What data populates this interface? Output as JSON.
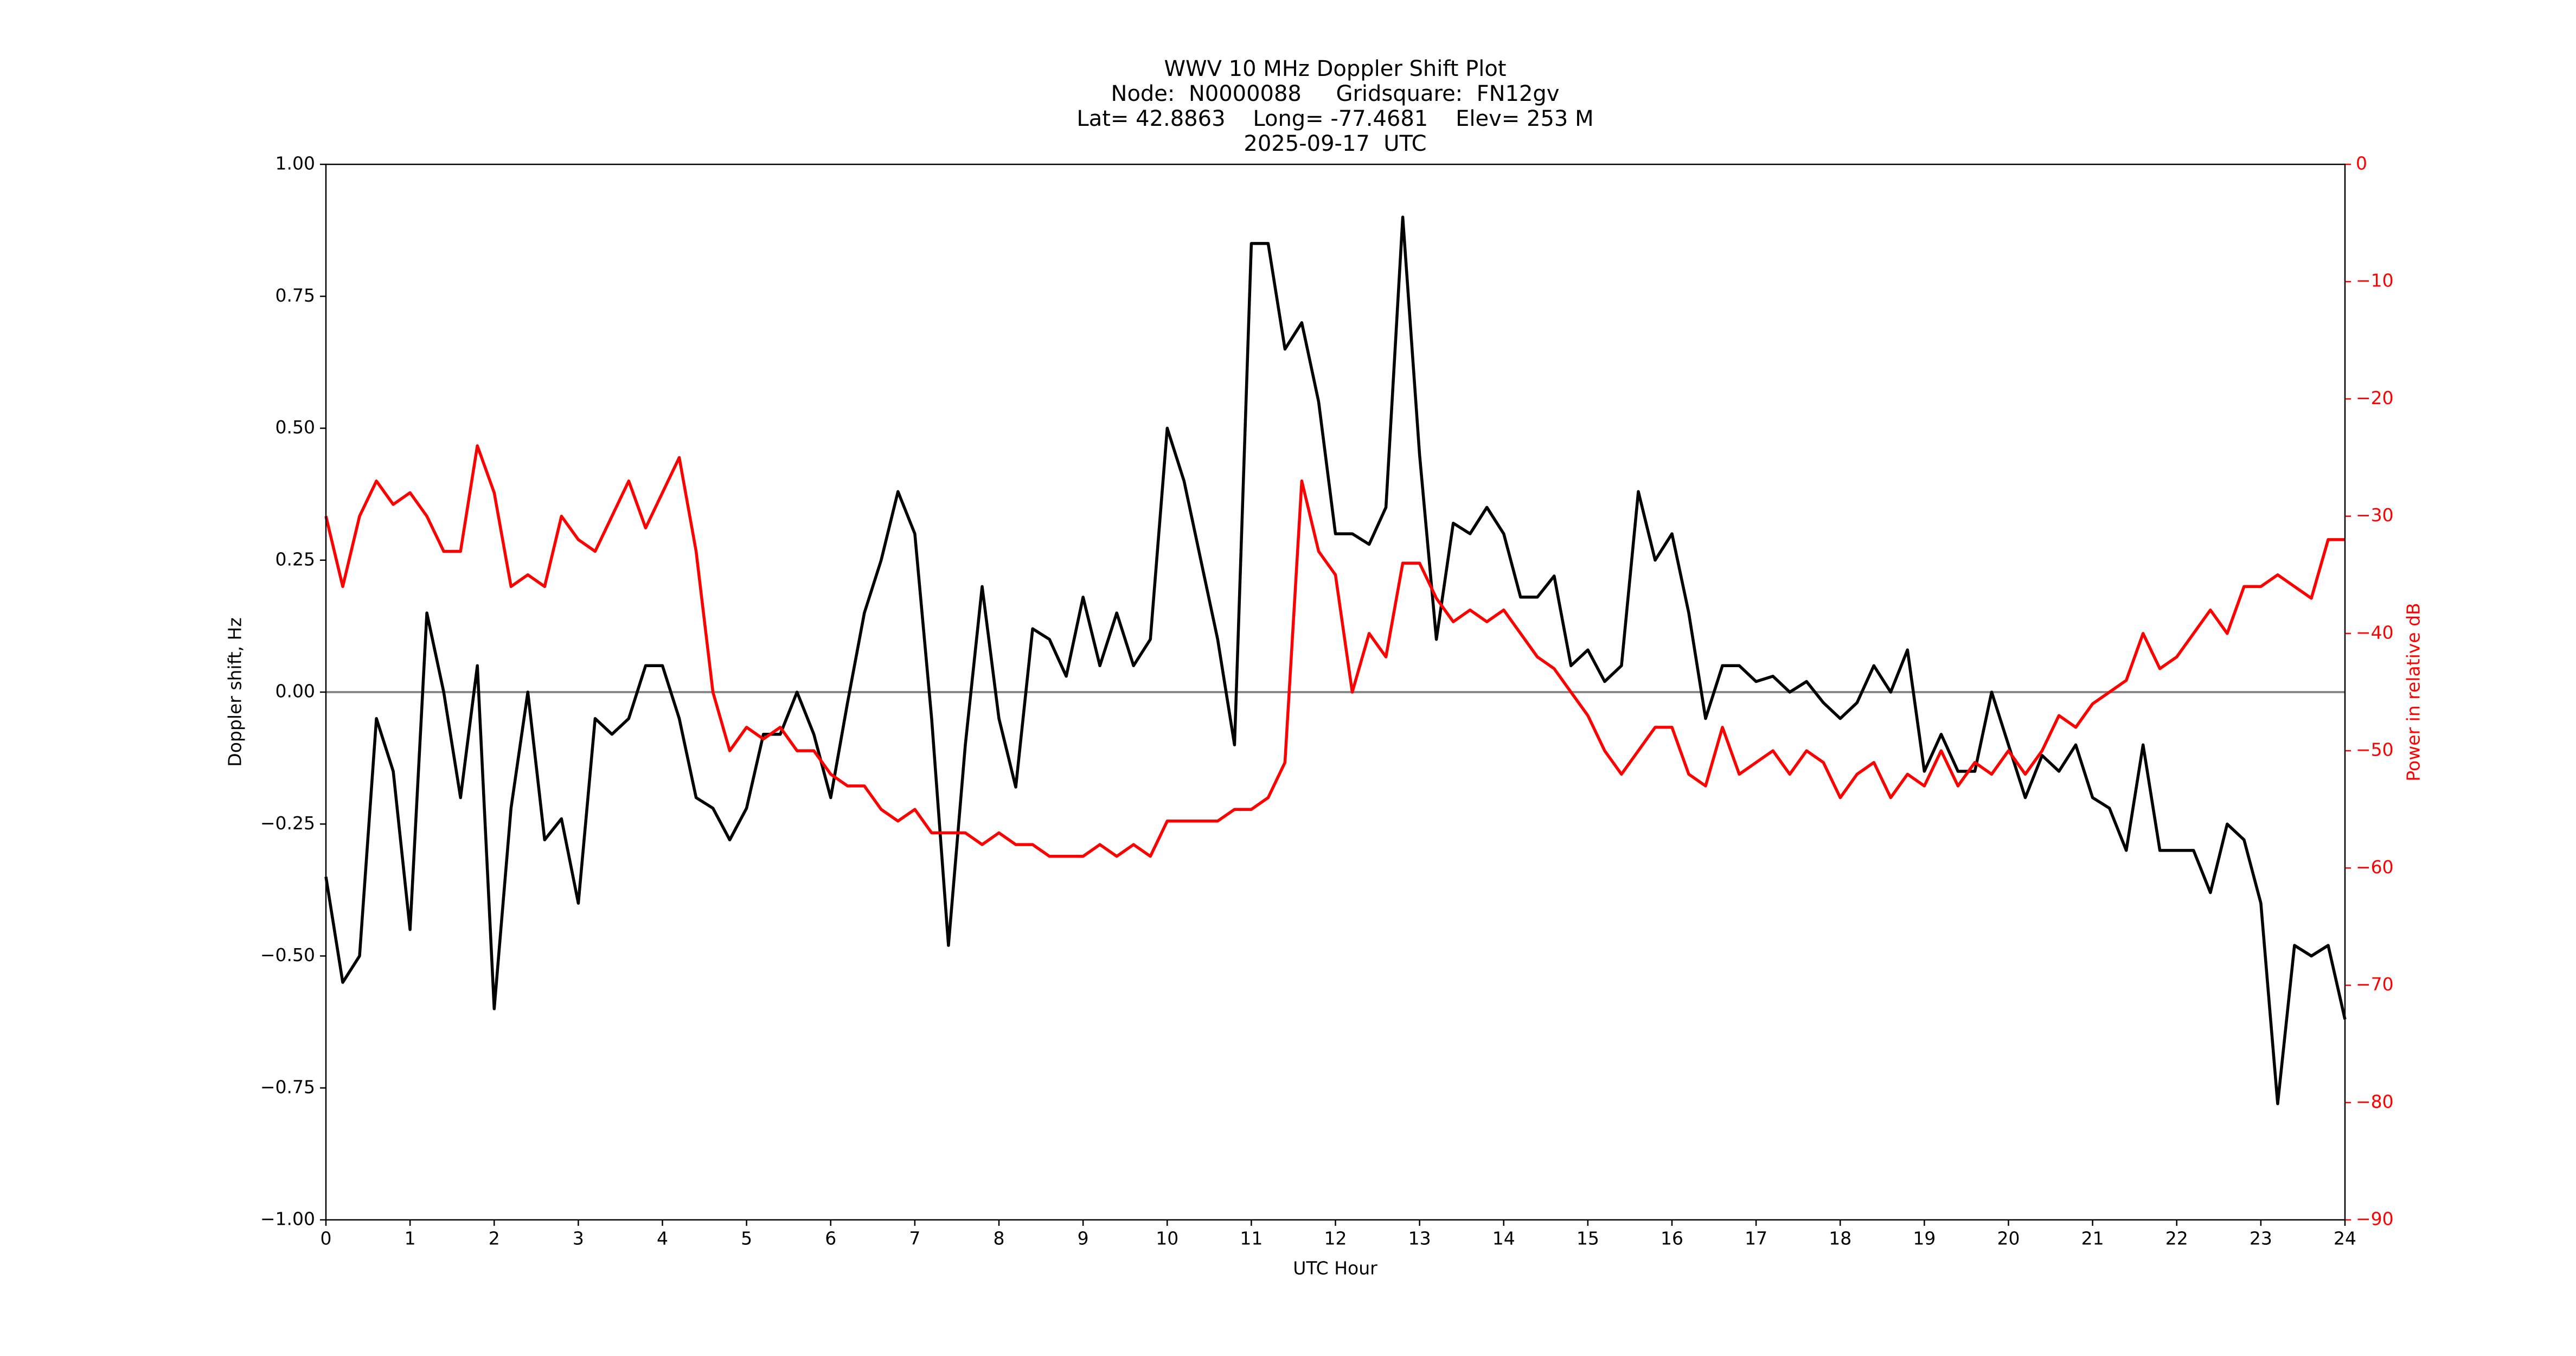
{
  "chart_data": {
    "type": "line",
    "title": "WWV 10 MHz Doppler Shift Plot",
    "subtitle": [
      "Node:  N0000088     Gridsquare:  FN12gv",
      "Lat= 42.8863    Long= -77.4681    Elev= 253 M",
      "2025-09-17  UTC"
    ],
    "xlabel": "UTC Hour",
    "ylabel": "Doppler shift, Hz",
    "y2label": "Power in relative dB",
    "xlim": [
      0,
      24
    ],
    "xticks": [
      0,
      1,
      2,
      3,
      4,
      5,
      6,
      7,
      8,
      9,
      10,
      11,
      12,
      13,
      14,
      15,
      16,
      17,
      18,
      19,
      20,
      21,
      22,
      23,
      24
    ],
    "ylim": [
      -1,
      1
    ],
    "yticks": [
      {
        "value": -1,
        "label": "−1.00"
      },
      {
        "value": -0.75,
        "label": "−0.75"
      },
      {
        "value": -0.5,
        "label": "−0.50"
      },
      {
        "value": -0.25,
        "label": "−0.25"
      },
      {
        "value": 0,
        "label": "0.00"
      },
      {
        "value": 0.25,
        "label": "0.25"
      },
      {
        "value": 0.5,
        "label": "0.50"
      },
      {
        "value": 0.75,
        "label": "0.75"
      },
      {
        "value": 1,
        "label": "1.00"
      }
    ],
    "y2lim": [
      -90,
      0
    ],
    "y2ticks": [
      {
        "value": -90,
        "label": "−90"
      },
      {
        "value": -80,
        "label": "−80"
      },
      {
        "value": -70,
        "label": "−70"
      },
      {
        "value": -60,
        "label": "−60"
      },
      {
        "value": -50,
        "label": "−50"
      },
      {
        "value": -40,
        "label": "−40"
      },
      {
        "value": -30,
        "label": "−30"
      },
      {
        "value": -20,
        "label": "−20"
      },
      {
        "value": -10,
        "label": "−10"
      },
      0
    ],
    "x": [
      0,
      0.2,
      0.4,
      0.6,
      0.8,
      1,
      1.2,
      1.4,
      1.6,
      1.8,
      2,
      2.2,
      2.4,
      2.6,
      2.8,
      3,
      3.2,
      3.4,
      3.6,
      3.8,
      4,
      4.2,
      4.4,
      4.6,
      4.8,
      5,
      5.2,
      5.4,
      5.6,
      5.8,
      6,
      6.2,
      6.4,
      6.6,
      6.8,
      7,
      7.2,
      7.4,
      7.6,
      7.8,
      8,
      8.2,
      8.4,
      8.6,
      8.8,
      9,
      9.2,
      9.4,
      9.6,
      9.8,
      10,
      10.2,
      10.4,
      10.6,
      10.8,
      11,
      11.2,
      11.4,
      11.6,
      11.8,
      12,
      12.2,
      12.4,
      12.6,
      12.8,
      13,
      13.2,
      13.4,
      13.6,
      13.8,
      14,
      14.2,
      14.4,
      14.6,
      14.8,
      15,
      15.2,
      15.4,
      15.6,
      15.8,
      16,
      16.2,
      16.4,
      16.6,
      16.8,
      17,
      17.2,
      17.4,
      17.6,
      17.8,
      18,
      18.2,
      18.4,
      18.6,
      18.8,
      19,
      19.2,
      19.4,
      19.6,
      19.8,
      20,
      20.2,
      20.4,
      20.6,
      20.8,
      21,
      21.2,
      21.4,
      21.6,
      21.8,
      22,
      22.2,
      22.4,
      22.6,
      22.8,
      23,
      23.2,
      23.4,
      23.6,
      23.8,
      24
    ],
    "series": [
      {
        "color": "#000000",
        "values": [
          -0.35,
          -0.55,
          -0.5,
          -0.05,
          -0.15,
          -0.45,
          0.15,
          0.0,
          -0.2,
          0.05,
          -0.6,
          -0.22,
          0.0,
          -0.28,
          -0.24,
          -0.4,
          -0.05,
          -0.08,
          -0.05,
          0.05,
          0.05,
          -0.05,
          -0.2,
          -0.22,
          -0.28,
          -0.22,
          -0.08,
          -0.08,
          0.0,
          -0.08,
          -0.2,
          -0.02,
          0.15,
          0.25,
          0.38,
          0.3,
          -0.05,
          -0.48,
          -0.1,
          0.2,
          -0.05,
          -0.18,
          0.12,
          0.1,
          0.03,
          0.18,
          0.05,
          0.15,
          0.05,
          0.1,
          0.5,
          0.4,
          0.25,
          0.1,
          -0.1,
          0.85,
          0.85,
          0.65,
          0.7,
          0.55,
          0.3,
          0.3,
          0.28,
          0.35,
          0.9,
          0.45,
          0.1,
          0.32,
          0.3,
          0.35,
          0.3,
          0.18,
          0.18,
          0.22,
          0.05,
          0.08,
          0.02,
          0.05,
          0.38,
          0.25,
          0.3,
          0.15,
          -0.05,
          0.05,
          0.05,
          0.02,
          0.03,
          0.0,
          0.02,
          -0.02,
          -0.05,
          -0.02,
          0.05,
          0.0,
          0.08,
          -0.15,
          -0.08,
          -0.15,
          -0.15,
          0.0,
          -0.1,
          -0.2,
          -0.12,
          -0.15,
          -0.1,
          -0.2,
          -0.22,
          -0.3,
          -0.1,
          -0.3,
          -0.3,
          -0.3,
          -0.38,
          -0.25,
          -0.28,
          -0.4,
          -0.78,
          -0.48,
          -0.5,
          -0.48,
          -0.62
        ]
      },
      {
        "color": "#ff0000",
        "axis": "y2",
        "values": [
          -30,
          -36,
          -30,
          -27,
          -29,
          -28,
          -30,
          -33,
          -33,
          -24,
          -28,
          -36,
          -35,
          -36,
          -30,
          -32,
          -33,
          -30,
          -27,
          -31,
          -28,
          -25,
          -33,
          -45,
          -50,
          -48,
          -49,
          -48,
          -50,
          -50,
          -52,
          -53,
          -53,
          -55,
          -56,
          -55,
          -57,
          -57,
          -57,
          -58,
          -57,
          -58,
          -58,
          -59,
          -59,
          -59,
          -58,
          -59,
          -58,
          -59,
          -56,
          -56,
          -56,
          -56,
          -55,
          -55,
          -54,
          -51,
          -27,
          -33,
          -35,
          -45,
          -40,
          -42,
          -34,
          -34,
          -37,
          -39,
          -38,
          -39,
          -38,
          -40,
          -42,
          -43,
          -45,
          -47,
          -50,
          -52,
          -50,
          -48,
          -48,
          -52,
          -53,
          -48,
          -52,
          -51,
          -50,
          -52,
          -50,
          -51,
          -54,
          -52,
          -51,
          -54,
          -52,
          -53,
          -50,
          -53,
          -51,
          -52,
          -50,
          -52,
          -50,
          -47,
          -48,
          -46,
          -45,
          -44,
          -40,
          -43,
          -42,
          -40,
          -38,
          -40,
          -36,
          -36,
          -35,
          -36,
          -37,
          -32,
          -32
        ]
      }
    ],
    "zero_line": true
  }
}
